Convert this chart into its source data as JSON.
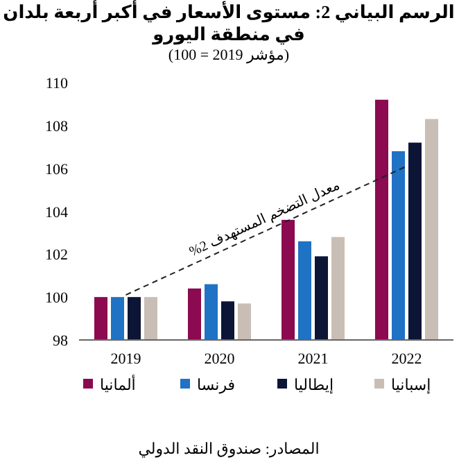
{
  "chart_data": {
    "type": "bar",
    "title": "الرسم البياني 2: مستوى الأسعار في أكبر أربعة بلدان في منطقة اليورو",
    "subtitle": "(مؤشر 2019 = 100)",
    "categories": [
      "2019",
      "2020",
      "2021",
      "2022"
    ],
    "series": [
      {
        "name": "ألمانيا",
        "color": "#8b0a50",
        "values": [
          100,
          100.4,
          103.6,
          109.2
        ]
      },
      {
        "name": "فرنسا",
        "color": "#1f72c4",
        "values": [
          100,
          100.6,
          102.6,
          106.8
        ]
      },
      {
        "name": "إيطاليا",
        "color": "#0c1535",
        "values": [
          100,
          99.8,
          101.9,
          107.2
        ]
      },
      {
        "name": "إسبانيا",
        "color": "#c9beb5",
        "values": [
          100,
          99.7,
          102.8,
          108.3
        ]
      },
      {
        "type": "line",
        "color": "#222222",
        "line_style": "dashed",
        "values": [
          100.1,
          102.1,
          104.1,
          106.1
        ]
      }
    ],
    "ylim": [
      98,
      110
    ],
    "yticks": [
      98,
      100,
      102,
      104,
      106,
      108,
      110
    ],
    "grid": false,
    "legend": "bottom",
    "annotations": [
      "معدل التضخم المستهدف 2%",
      "المصادر: صندوق النقد الدولي"
    ]
  }
}
